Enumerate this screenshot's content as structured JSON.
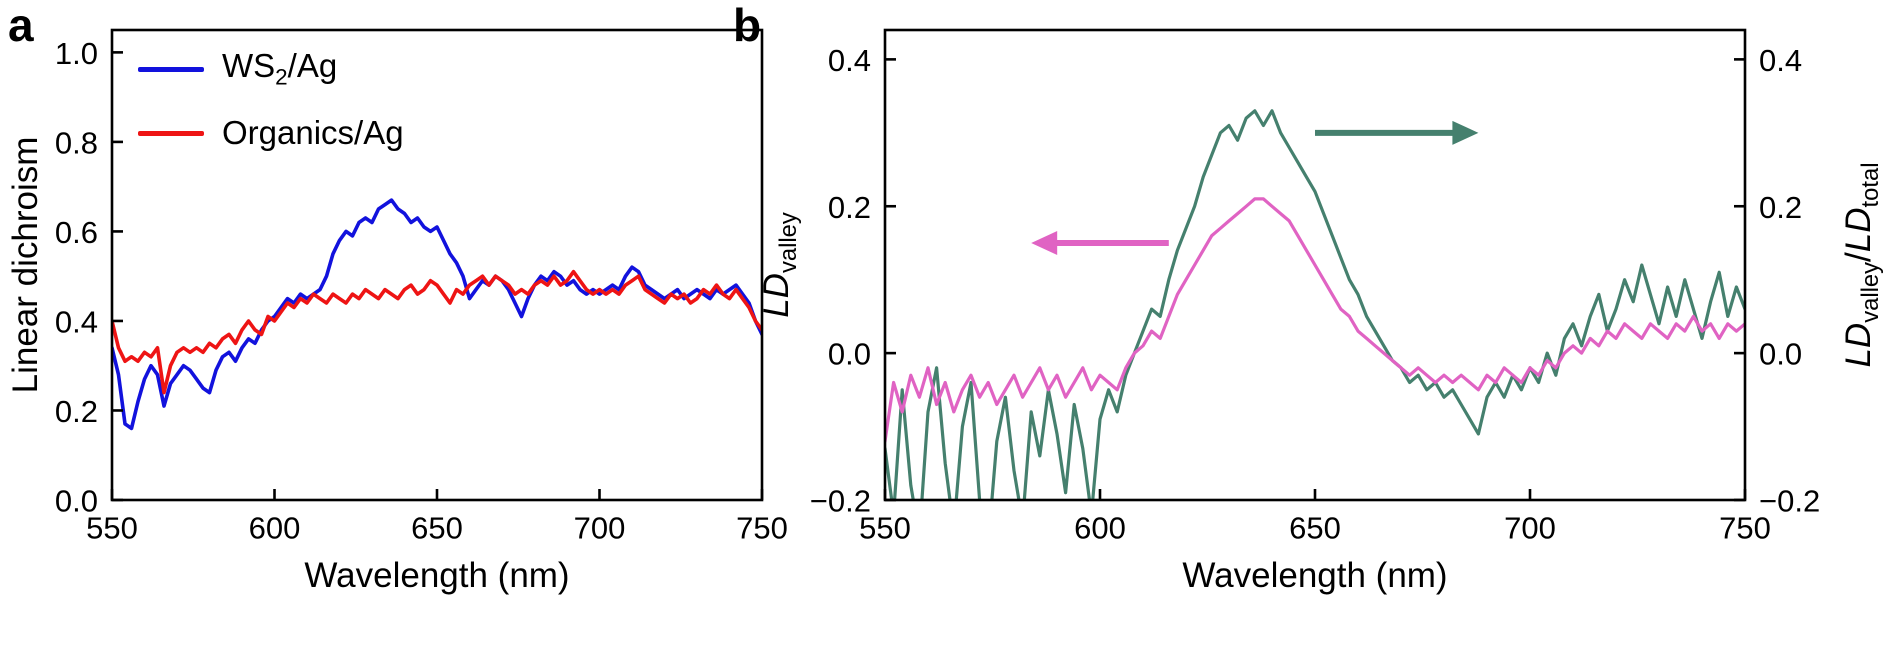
{
  "panels": {
    "a": {
      "label": "a",
      "xlabel": "Wavelength (nm)",
      "ylabel": "Linear dichroism",
      "legend": [
        {
          "pre": "WS",
          "sub": "2",
          "post": "/Ag"
        },
        {
          "pre": "Organics/Ag",
          "sub": "",
          "post": ""
        }
      ]
    },
    "b": {
      "label": "b",
      "xlabel": "Wavelength (nm)",
      "ylabel_left": {
        "main": "LD",
        "sub": "valley"
      },
      "ylabel_right": {
        "m1": "LD",
        "s1": "valley",
        "sep": "/",
        "m2": "LD",
        "s2": "total"
      }
    }
  },
  "chart_data": [
    {
      "type": "line",
      "panel": "a",
      "title": "",
      "xlabel": "Wavelength (nm)",
      "ylabel": "Linear dichroism",
      "xlim": [
        550,
        750
      ],
      "ylim": [
        0,
        1.05
      ],
      "x_start": 550,
      "x_step": 2,
      "xticks": {
        "values": [
          550,
          600,
          650,
          700,
          750
        ],
        "labels": [
          "550",
          "600",
          "650",
          "700",
          "750"
        ]
      },
      "yticks": {
        "values": [
          0,
          0.2,
          0.4,
          0.6,
          0.8,
          1.0
        ],
        "labels": [
          "0.0",
          "0.2",
          "0.4",
          "0.6",
          "0.8",
          "1.0"
        ]
      },
      "axes": {
        "left": true,
        "bottom": true,
        "right": false
      },
      "grid": false,
      "legend_position": "top-left",
      "series": [
        {
          "name": "WS2/Ag",
          "color": "#1212dd",
          "width": 3.6,
          "values": [
            0.34,
            0.28,
            0.17,
            0.16,
            0.22,
            0.27,
            0.3,
            0.28,
            0.21,
            0.26,
            0.28,
            0.3,
            0.29,
            0.27,
            0.25,
            0.24,
            0.29,
            0.32,
            0.33,
            0.31,
            0.34,
            0.36,
            0.35,
            0.38,
            0.4,
            0.41,
            0.43,
            0.45,
            0.44,
            0.46,
            0.45,
            0.46,
            0.47,
            0.5,
            0.55,
            0.58,
            0.6,
            0.59,
            0.62,
            0.63,
            0.62,
            0.65,
            0.66,
            0.67,
            0.65,
            0.64,
            0.62,
            0.63,
            0.61,
            0.6,
            0.61,
            0.58,
            0.55,
            0.53,
            0.5,
            0.45,
            0.47,
            0.49,
            0.48,
            0.5,
            0.49,
            0.47,
            0.44,
            0.41,
            0.45,
            0.48,
            0.5,
            0.49,
            0.51,
            0.5,
            0.48,
            0.49,
            0.47,
            0.46,
            0.47,
            0.46,
            0.47,
            0.48,
            0.47,
            0.5,
            0.52,
            0.51,
            0.48,
            0.47,
            0.46,
            0.45,
            0.46,
            0.47,
            0.45,
            0.46,
            0.47,
            0.46,
            0.45,
            0.47,
            0.46,
            0.47,
            0.48,
            0.46,
            0.44,
            0.4,
            0.37
          ]
        },
        {
          "name": "Organics/Ag",
          "color": "#ee1414",
          "width": 3.6,
          "values": [
            0.4,
            0.34,
            0.31,
            0.32,
            0.31,
            0.33,
            0.32,
            0.34,
            0.24,
            0.3,
            0.33,
            0.34,
            0.33,
            0.34,
            0.33,
            0.35,
            0.34,
            0.36,
            0.37,
            0.35,
            0.38,
            0.4,
            0.38,
            0.37,
            0.41,
            0.4,
            0.42,
            0.44,
            0.43,
            0.45,
            0.44,
            0.46,
            0.45,
            0.44,
            0.46,
            0.45,
            0.44,
            0.46,
            0.45,
            0.47,
            0.46,
            0.45,
            0.47,
            0.46,
            0.45,
            0.47,
            0.48,
            0.46,
            0.47,
            0.49,
            0.48,
            0.46,
            0.44,
            0.47,
            0.46,
            0.48,
            0.49,
            0.5,
            0.48,
            0.5,
            0.49,
            0.48,
            0.46,
            0.47,
            0.46,
            0.48,
            0.49,
            0.48,
            0.5,
            0.48,
            0.49,
            0.51,
            0.49,
            0.47,
            0.46,
            0.47,
            0.46,
            0.47,
            0.46,
            0.48,
            0.49,
            0.5,
            0.47,
            0.46,
            0.45,
            0.44,
            0.46,
            0.45,
            0.46,
            0.44,
            0.45,
            0.47,
            0.46,
            0.48,
            0.46,
            0.45,
            0.47,
            0.45,
            0.43,
            0.4,
            0.38
          ]
        }
      ]
    },
    {
      "type": "line",
      "panel": "b",
      "title": "",
      "xlabel": "Wavelength (nm)",
      "ylabel_left": "LD_valley",
      "ylabel_right": "LD_valley/LD_total",
      "xlim": [
        550,
        750
      ],
      "ylim": [
        -0.2,
        0.44
      ],
      "x_start": 550,
      "x_step": 2,
      "xticks": {
        "values": [
          550,
          600,
          650,
          700,
          750
        ],
        "labels": [
          "550",
          "600",
          "650",
          "700",
          "750"
        ]
      },
      "yticks": {
        "values": [
          -0.2,
          0,
          0.2,
          0.4
        ],
        "labels": [
          "−0.2",
          "0.0",
          "0.2",
          "0.4"
        ]
      },
      "axes": {
        "left": true,
        "bottom": true,
        "right": true
      },
      "grid": false,
      "series": [
        {
          "name": "LD_valley/LD_total",
          "axis": "right",
          "color": "#45806e",
          "width": 3.2,
          "values": [
            -0.13,
            -0.22,
            -0.05,
            -0.18,
            -0.25,
            -0.08,
            -0.02,
            -0.15,
            -0.24,
            -0.1,
            -0.04,
            -0.2,
            -0.26,
            -0.12,
            -0.06,
            -0.16,
            -0.23,
            -0.08,
            -0.14,
            -0.05,
            -0.11,
            -0.19,
            -0.07,
            -0.13,
            -0.22,
            -0.09,
            -0.05,
            -0.08,
            -0.03,
            0.0,
            0.03,
            0.06,
            0.05,
            0.1,
            0.14,
            0.17,
            0.2,
            0.24,
            0.27,
            0.3,
            0.31,
            0.29,
            0.32,
            0.33,
            0.31,
            0.33,
            0.3,
            0.28,
            0.26,
            0.24,
            0.22,
            0.19,
            0.16,
            0.13,
            0.1,
            0.08,
            0.05,
            0.03,
            0.01,
            -0.01,
            -0.02,
            -0.04,
            -0.03,
            -0.05,
            -0.04,
            -0.06,
            -0.05,
            -0.07,
            -0.09,
            -0.11,
            -0.06,
            -0.04,
            -0.06,
            -0.03,
            -0.05,
            -0.02,
            -0.04,
            0.0,
            -0.03,
            0.02,
            0.04,
            0.01,
            0.05,
            0.08,
            0.03,
            0.06,
            0.1,
            0.07,
            0.12,
            0.08,
            0.04,
            0.09,
            0.05,
            0.1,
            0.06,
            0.02,
            0.07,
            0.11,
            0.05,
            0.09,
            0.06
          ]
        },
        {
          "name": "LD_valley",
          "axis": "left",
          "color": "#e063c3",
          "width": 3.2,
          "values": [
            -0.12,
            -0.04,
            -0.08,
            -0.03,
            -0.06,
            -0.02,
            -0.07,
            -0.04,
            -0.08,
            -0.05,
            -0.03,
            -0.06,
            -0.04,
            -0.07,
            -0.05,
            -0.03,
            -0.06,
            -0.04,
            -0.02,
            -0.05,
            -0.03,
            -0.06,
            -0.04,
            -0.02,
            -0.05,
            -0.03,
            -0.04,
            -0.05,
            -0.02,
            0.0,
            0.01,
            0.03,
            0.02,
            0.05,
            0.08,
            0.1,
            0.12,
            0.14,
            0.16,
            0.17,
            0.18,
            0.19,
            0.2,
            0.21,
            0.21,
            0.2,
            0.19,
            0.18,
            0.16,
            0.14,
            0.12,
            0.1,
            0.08,
            0.06,
            0.05,
            0.03,
            0.02,
            0.01,
            0.0,
            -0.01,
            -0.02,
            -0.03,
            -0.02,
            -0.03,
            -0.04,
            -0.03,
            -0.04,
            -0.03,
            -0.04,
            -0.05,
            -0.03,
            -0.04,
            -0.02,
            -0.03,
            -0.04,
            -0.02,
            -0.03,
            -0.01,
            -0.02,
            0.0,
            0.01,
            0.0,
            0.02,
            0.01,
            0.03,
            0.02,
            0.04,
            0.03,
            0.02,
            0.04,
            0.03,
            0.02,
            0.04,
            0.03,
            0.05,
            0.03,
            0.04,
            0.02,
            0.04,
            0.03,
            0.04
          ]
        }
      ],
      "annotations": [
        {
          "type": "arrow",
          "series": "LD_valley",
          "color": "#e063c3",
          "direction": "left",
          "x_frac_from": 0.33,
          "x_frac_to": 0.17,
          "y_value": 0.15
        },
        {
          "type": "arrow",
          "series": "LD_valley/LD_total",
          "color": "#45806e",
          "direction": "right",
          "x_frac_from": 0.5,
          "x_frac_to": 0.69,
          "y_value": 0.3
        }
      ]
    }
  ]
}
